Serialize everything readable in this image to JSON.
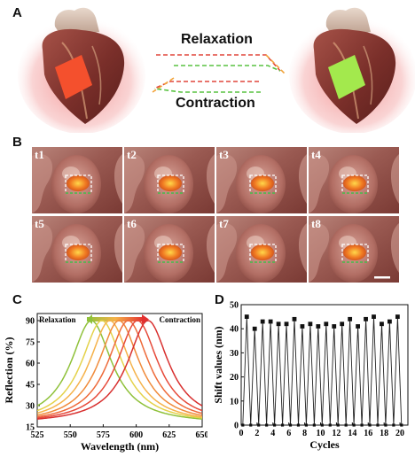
{
  "panels": {
    "a": {
      "letter": "A",
      "relaxation": "Relaxation",
      "contraction": "Contraction",
      "colors": {
        "relaxed_patch": "#ef3a1e",
        "contracted_patch": "#8ee03a",
        "red_line": "#e0473b",
        "green_line": "#58c240",
        "orange_line": "#f2a33a"
      }
    },
    "b": {
      "letter": "B",
      "frames": [
        "t1",
        "t2",
        "t3",
        "t4",
        "t5",
        "t6",
        "t7",
        "t8"
      ]
    },
    "c": {
      "letter": "C"
    },
    "d": {
      "letter": "D"
    }
  },
  "chart_data": [
    {
      "type": "line",
      "panel": "C",
      "xlabel": "Wavelength (nm)",
      "ylabel": "Reflection (%)",
      "xlim": [
        525,
        650
      ],
      "ylim": [
        15,
        95
      ],
      "xticks": [
        525,
        550,
        575,
        600,
        625,
        650
      ],
      "yticks": [
        15,
        30,
        45,
        60,
        75,
        90
      ],
      "legend": {
        "left": "Relaxation",
        "right": "Contraction"
      },
      "grid": false,
      "series": [
        {
          "peak": 566,
          "color": "#8fc13a"
        },
        {
          "peak": 574,
          "color": "#e4d24a"
        },
        {
          "peak": 580,
          "color": "#f5b24a"
        },
        {
          "peak": 587,
          "color": "#f08a3a"
        },
        {
          "peak": 594,
          "color": "#ee6a3a"
        },
        {
          "peak": 601,
          "color": "#e64a3a"
        },
        {
          "peak": 609,
          "color": "#d8302f"
        }
      ],
      "peak_value": 90,
      "baseline": 17
    },
    {
      "type": "line",
      "panel": "D",
      "xlabel": "Cycles",
      "ylabel": "Shift values (nm)",
      "xlim": [
        0,
        21
      ],
      "ylim": [
        0,
        50
      ],
      "xticks": [
        0,
        2,
        4,
        6,
        8,
        10,
        12,
        14,
        16,
        18,
        20
      ],
      "yticks": [
        0,
        10,
        20,
        30,
        40,
        50
      ],
      "grid": false,
      "peaks": [
        45,
        40,
        43,
        43,
        42,
        42,
        44,
        41,
        42,
        41,
        42,
        41,
        42,
        44,
        41,
        44,
        45,
        42,
        43,
        45
      ],
      "baseline": 0
    }
  ]
}
